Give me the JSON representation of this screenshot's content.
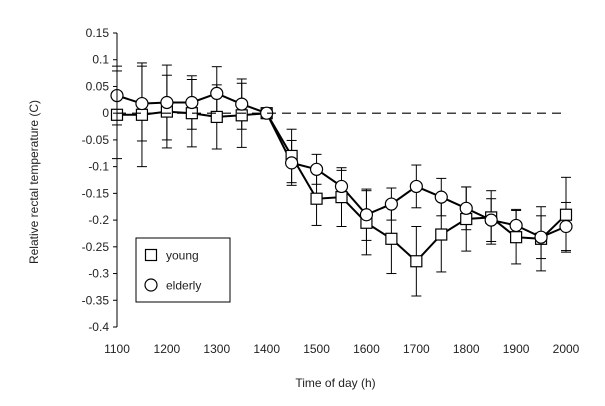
{
  "chart_data": {
    "type": "line",
    "xlabel": "Time of day (h)",
    "ylabel": "Relative rectal temperature (C)",
    "xlim": [
      1100,
      2000
    ],
    "ylim": [
      -0.4,
      0.15
    ],
    "x_ticks": [
      "1100",
      "1200",
      "1300",
      "1400",
      "1500",
      "1600",
      "1700",
      "1800",
      "1900",
      "2000"
    ],
    "y_ticks": [
      "0.15",
      "0.1",
      "0.05",
      "0",
      "-0.05",
      "-0.1",
      "-0.15",
      "-0.2",
      "-0.25",
      "-0.3",
      "-0.35",
      "-0.4"
    ],
    "reference_line": {
      "y": 0,
      "style": "dashed"
    },
    "x": [
      1100,
      1150,
      1200,
      1250,
      1300,
      1350,
      1400,
      1450,
      1500,
      1550,
      1600,
      1650,
      1700,
      1750,
      1800,
      1850,
      1900,
      1950,
      2000
    ],
    "series": [
      {
        "name": "young",
        "marker": "square",
        "values": [
          -0.003,
          -0.003,
          0.003,
          0.0,
          -0.007,
          -0.004,
          0.0,
          -0.08,
          -0.16,
          -0.157,
          -0.205,
          -0.235,
          -0.277,
          -0.227,
          -0.198,
          -0.195,
          -0.232,
          -0.235,
          -0.19
        ],
        "error": [
          0.082,
          0.097,
          0.068,
          0.063,
          0.06,
          0.06,
          0.0,
          0.05,
          0.05,
          0.055,
          0.06,
          0.065,
          0.065,
          0.07,
          0.06,
          0.05,
          0.05,
          0.06,
          0.07
        ]
      },
      {
        "name": "elderly",
        "marker": "circle",
        "values": [
          0.033,
          0.018,
          0.02,
          0.02,
          0.037,
          0.017,
          0.0,
          -0.093,
          -0.105,
          -0.137,
          -0.19,
          -0.17,
          -0.137,
          -0.157,
          -0.178,
          -0.2,
          -0.21,
          -0.232,
          -0.212
        ],
        "error": [
          0.055,
          0.07,
          0.07,
          0.05,
          0.05,
          0.047,
          0.0,
          0.042,
          0.028,
          0.03,
          0.048,
          0.03,
          0.04,
          0.035,
          0.04,
          0.04,
          0.03,
          0.04,
          0.045
        ]
      }
    ],
    "legend": {
      "position": "bottom-left",
      "entries": [
        "young",
        "elderly"
      ]
    },
    "grid": false
  }
}
